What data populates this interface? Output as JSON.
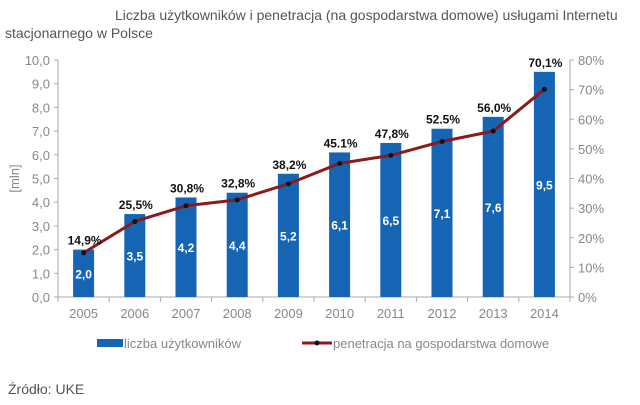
{
  "title": "Liczba użytkowników i penetracja (na gospodarstwa domowe) usługami Internetu stacjonarnego w Polsce",
  "source": "Źródło: UKE",
  "chart_data": {
    "type": "bar+line",
    "categories": [
      "2005",
      "2006",
      "2007",
      "2008",
      "2009",
      "2010",
      "2011",
      "2012",
      "2013",
      "2014"
    ],
    "series": [
      {
        "name": "liczba użytkowników",
        "type": "bar",
        "axis": "left",
        "color": "#1565b4",
        "values": [
          2.0,
          3.5,
          4.2,
          4.4,
          5.2,
          6.1,
          6.5,
          7.1,
          7.6,
          9.5
        ],
        "labels": [
          "2,0",
          "3,5",
          "4,2",
          "4,4",
          "5,2",
          "6,1",
          "6,5",
          "7,1",
          "7,6",
          "9,5"
        ]
      },
      {
        "name": "penetracja na gospodarstwa domowe",
        "type": "line",
        "axis": "right",
        "color": "#8b1a1a",
        "marker_color": "#111111",
        "values": [
          14.9,
          25.5,
          30.8,
          32.8,
          38.2,
          45.1,
          47.8,
          52.5,
          56.0,
          70.1
        ],
        "labels": [
          "14,9%",
          "25,5%",
          "30,8%",
          "32,8%",
          "38,2%",
          "45.1%",
          "47,8%",
          "52.5%",
          "56,0%",
          "70,1%"
        ]
      }
    ],
    "ylabel": "[mln]",
    "ylim": [
      0,
      10
    ],
    "yticks": [
      "0,0",
      "1,0",
      "2,0",
      "3,0",
      "4,0",
      "5,0",
      "6,0",
      "7,0",
      "8,0",
      "9,0",
      "10,0"
    ],
    "y2lim": [
      0,
      80
    ],
    "y2ticks": [
      "0%",
      "10%",
      "20%",
      "30%",
      "40%",
      "50%",
      "60%",
      "70%",
      "80%"
    ],
    "grid": false,
    "legend": "bottom"
  }
}
